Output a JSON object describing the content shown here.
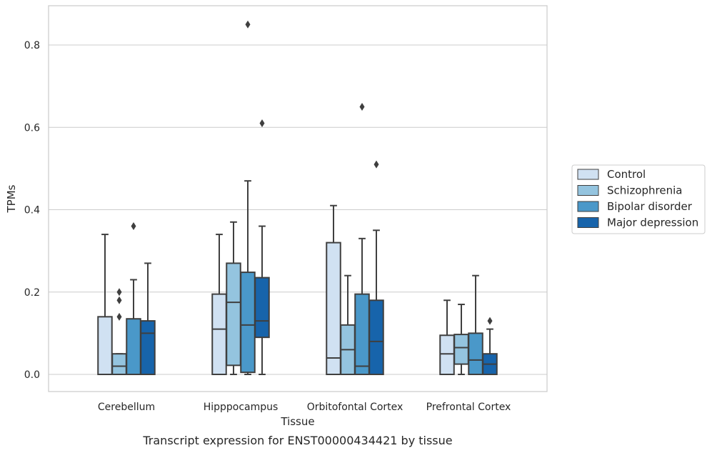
{
  "caption": "Transcript expression for ENST00000434421 by tissue",
  "chart_data": {
    "type": "boxplot",
    "xlabel": "Tissue",
    "ylabel": "TPMs",
    "ylim": [
      -0.04,
      0.89
    ],
    "yticks": [
      0.0,
      0.2,
      0.4,
      0.6,
      0.8
    ],
    "ytick_labels": [
      "0.0",
      "0.2",
      "0.4",
      "0.6",
      "0.8"
    ],
    "grid": "horizontal",
    "legend_position": "right",
    "categories": [
      "Cerebellum",
      "Hipppocampus",
      "Orbitofontal Cortex",
      "Prefrontal Cortex"
    ],
    "series": [
      {
        "name": "Control",
        "color": "#d0e1f2",
        "boxes": [
          {
            "min": 0.0,
            "q1": 0.0,
            "median": 0.0,
            "q3": 0.14,
            "max": 0.34,
            "outliers": []
          },
          {
            "min": 0.0,
            "q1": 0.0,
            "median": 0.11,
            "q3": 0.195,
            "max": 0.34,
            "outliers": []
          },
          {
            "min": 0.0,
            "q1": 0.0,
            "median": 0.04,
            "q3": 0.32,
            "max": 0.41,
            "outliers": []
          },
          {
            "min": 0.0,
            "q1": 0.0,
            "median": 0.05,
            "q3": 0.095,
            "max": 0.18,
            "outliers": []
          }
        ]
      },
      {
        "name": "Schizophrenia",
        "color": "#94c4df",
        "boxes": [
          {
            "min": 0.0,
            "q1": 0.0,
            "median": 0.02,
            "q3": 0.05,
            "max": 0.05,
            "outliers": [
              0.2,
              0.18,
              0.14
            ]
          },
          {
            "min": 0.0,
            "q1": 0.022,
            "median": 0.175,
            "q3": 0.27,
            "max": 0.37,
            "outliers": []
          },
          {
            "min": 0.0,
            "q1": 0.0,
            "median": 0.06,
            "q3": 0.12,
            "max": 0.24,
            "outliers": []
          },
          {
            "min": 0.0,
            "q1": 0.025,
            "median": 0.065,
            "q3": 0.097,
            "max": 0.17,
            "outliers": []
          }
        ]
      },
      {
        "name": "Bipolar disorder",
        "color": "#4a98c9",
        "boxes": [
          {
            "min": 0.0,
            "q1": 0.0,
            "median": 0.0,
            "q3": 0.135,
            "max": 0.23,
            "outliers": [
              0.36
            ]
          },
          {
            "min": 0.0,
            "q1": 0.005,
            "median": 0.12,
            "q3": 0.248,
            "max": 0.47,
            "outliers": [
              0.85
            ]
          },
          {
            "min": 0.0,
            "q1": 0.0,
            "median": 0.02,
            "q3": 0.195,
            "max": 0.33,
            "outliers": [
              0.65
            ]
          },
          {
            "min": 0.0,
            "q1": 0.0,
            "median": 0.035,
            "q3": 0.1,
            "max": 0.24,
            "outliers": []
          }
        ]
      },
      {
        "name": "Major depression",
        "color": "#1764ab",
        "boxes": [
          {
            "min": 0.0,
            "q1": 0.0,
            "median": 0.1,
            "q3": 0.13,
            "max": 0.27,
            "outliers": []
          },
          {
            "min": 0.0,
            "q1": 0.09,
            "median": 0.13,
            "q3": 0.235,
            "max": 0.36,
            "outliers": [
              0.61
            ]
          },
          {
            "min": 0.0,
            "q1": 0.0,
            "median": 0.08,
            "q3": 0.18,
            "max": 0.35,
            "outliers": [
              0.51
            ]
          },
          {
            "min": 0.0,
            "q1": 0.0,
            "median": 0.025,
            "q3": 0.05,
            "max": 0.11,
            "outliers": [
              0.13
            ]
          }
        ]
      }
    ]
  }
}
